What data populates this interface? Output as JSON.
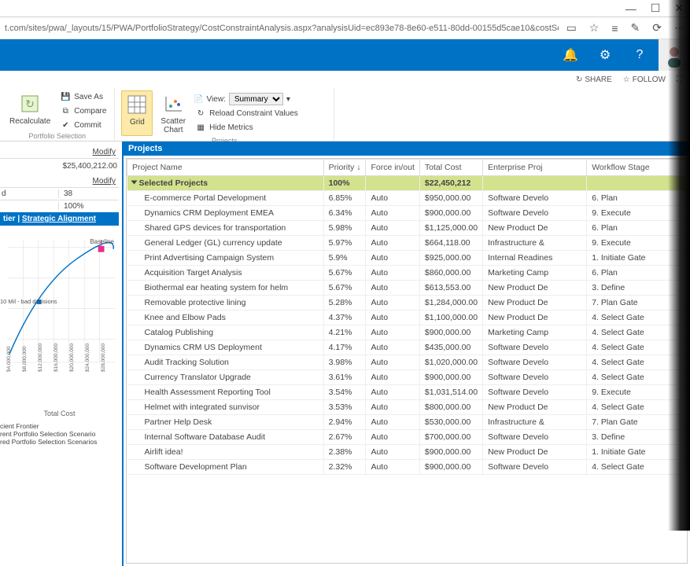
{
  "browser": {
    "url": "t.com/sites/pwa/_layouts/15/PWA/PortfolioStrategy/CostConstraintAnalysis.aspx?analysisUid=ec893e78-8e60-e511-80dd-00155d5cae10&costSolut",
    "minimize": "—",
    "maximize": "☐",
    "close": "✕"
  },
  "sharebar": {
    "share": "SHARE",
    "follow": "FOLLOW"
  },
  "ribbon": {
    "portfolio_group": "Portfolio Selection",
    "projects_group": "Projects",
    "recalculate": "Recalculate",
    "save_as": "Save As",
    "compare": "Compare",
    "commit": "Commit",
    "grid": "Grid",
    "scatter": "Scatter\nChart",
    "view_label": "View:",
    "view_value": "Summary",
    "reload": "Reload Constraint Values",
    "hide": "Hide Metrics"
  },
  "left": {
    "modify": "Modify",
    "total": "$25,400,212.00",
    "stat_d_label": "d",
    "stat_d_val": "38",
    "stat_pct": "100%",
    "tab_a": "tier",
    "tab_b": "Strategic Alignment",
    "baseline": "Baseline",
    "marker_label": "10 Mil - bad decisions",
    "xaxis": "Total Cost",
    "xticks": [
      "$4,000,000",
      "$8,000,000",
      "$12,000,000",
      "$16,000,000",
      "$20,000,000",
      "$24,000,000",
      "$28,000,000"
    ],
    "legend1": "cient Frontier",
    "legend2": "rent Portfolio Selection Scenario",
    "legend3": "red Portfolio Selection Scenarios"
  },
  "projects": {
    "title": "Projects",
    "columns": [
      "Project Name",
      "Priority ↓",
      "Force in/out",
      "Total Cost",
      "Enterprise Proj",
      "Workflow Stage"
    ],
    "selected_label": "Selected Projects",
    "selected_priority": "100%",
    "selected_cost": "$22,450,212",
    "rows": [
      {
        "name": "E-commerce Portal Development",
        "prio": "6.85%",
        "force": "Auto",
        "cost": "$950,000.00",
        "ep": "Software Develo",
        "wf": "6. Plan"
      },
      {
        "name": "Dynamics CRM Deployment EMEA",
        "prio": "6.34%",
        "force": "Auto",
        "cost": "$900,000.00",
        "ep": "Software Develo",
        "wf": "9. Execute"
      },
      {
        "name": "Shared GPS devices for transportation",
        "prio": "5.98%",
        "force": "Auto",
        "cost": "$1,125,000.00",
        "ep": "New Product De",
        "wf": "6. Plan"
      },
      {
        "name": "General Ledger (GL) currency update",
        "prio": "5.97%",
        "force": "Auto",
        "cost": "$664,118.00",
        "ep": "Infrastructure &",
        "wf": "9. Execute"
      },
      {
        "name": "Print Advertising Campaign System",
        "prio": "5.9%",
        "force": "Auto",
        "cost": "$925,000.00",
        "ep": "Internal Readines",
        "wf": "1. Initiate Gate"
      },
      {
        "name": "Acquisition Target Analysis",
        "prio": "5.67%",
        "force": "Auto",
        "cost": "$860,000.00",
        "ep": "Marketing Camp",
        "wf": "6. Plan"
      },
      {
        "name": "Biothermal ear heating system for helm",
        "prio": "5.67%",
        "force": "Auto",
        "cost": "$613,553.00",
        "ep": "New Product De",
        "wf": "3. Define"
      },
      {
        "name": "Removable protective lining",
        "prio": "5.28%",
        "force": "Auto",
        "cost": "$1,284,000.00",
        "ep": "New Product De",
        "wf": "7. Plan Gate"
      },
      {
        "name": "Knee and Elbow Pads",
        "prio": "4.37%",
        "force": "Auto",
        "cost": "$1,100,000.00",
        "ep": "New Product De",
        "wf": "4. Select Gate"
      },
      {
        "name": "Catalog Publishing",
        "prio": "4.21%",
        "force": "Auto",
        "cost": "$900,000.00",
        "ep": "Marketing Camp",
        "wf": "4. Select Gate"
      },
      {
        "name": "Dynamics CRM US Deployment",
        "prio": "4.17%",
        "force": "Auto",
        "cost": "$435,000.00",
        "ep": "Software Develo",
        "wf": "4. Select Gate"
      },
      {
        "name": "Audit Tracking Solution",
        "prio": "3.98%",
        "force": "Auto",
        "cost": "$1,020,000.00",
        "ep": "Software Develo",
        "wf": "4. Select Gate"
      },
      {
        "name": "Currency Translator Upgrade",
        "prio": "3.61%",
        "force": "Auto",
        "cost": "$900,000.00",
        "ep": "Software Develo",
        "wf": "4. Select Gate"
      },
      {
        "name": "Health Assessment Reporting Tool",
        "prio": "3.54%",
        "force": "Auto",
        "cost": "$1,031,514.00",
        "ep": "Software Develo",
        "wf": "9. Execute"
      },
      {
        "name": "Helmet with integrated sunvisor",
        "prio": "3.53%",
        "force": "Auto",
        "cost": "$800,000.00",
        "ep": "New Product De",
        "wf": "4. Select Gate"
      },
      {
        "name": "Partner Help Desk",
        "prio": "2.94%",
        "force": "Auto",
        "cost": "$530,000.00",
        "ep": "Infrastructure &",
        "wf": "7. Plan Gate"
      },
      {
        "name": "Internal Software Database Audit",
        "prio": "2.67%",
        "force": "Auto",
        "cost": "$700,000.00",
        "ep": "Software Develo",
        "wf": "3. Define"
      },
      {
        "name": "Airlift idea!",
        "prio": "2.38%",
        "force": "Auto",
        "cost": "$900,000.00",
        "ep": "New Product De",
        "wf": "1. Initiate Gate"
      },
      {
        "name": "Software Development Plan",
        "prio": "2.32%",
        "force": "Auto",
        "cost": "$900,000.00",
        "ep": "Software Develo",
        "wf": "4. Select Gate"
      }
    ]
  },
  "chart": {
    "line_color": "#0072c6",
    "marker_color": "#e62e8b",
    "baseline_color": "#e62e8b",
    "grid_color": "#d8d8d8",
    "bg": "#ffffff",
    "points": [
      [
        10,
        150
      ],
      [
        25,
        120
      ],
      [
        45,
        80
      ],
      [
        70,
        55
      ],
      [
        95,
        40
      ],
      [
        120,
        32
      ],
      [
        140,
        28
      ]
    ]
  }
}
